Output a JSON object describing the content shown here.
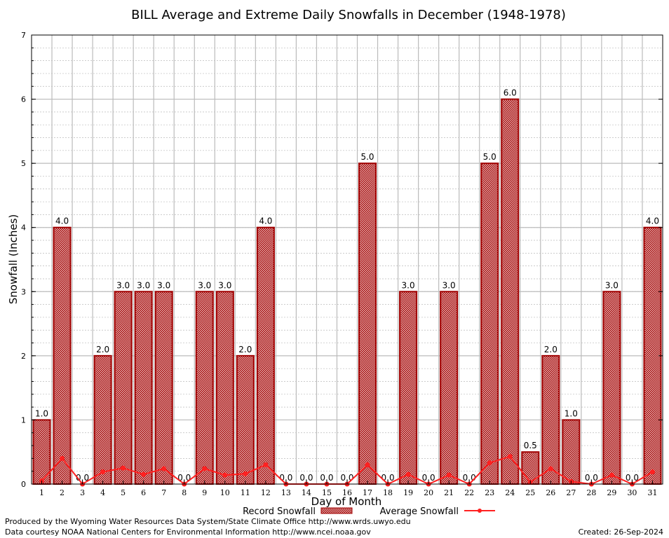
{
  "chart_data": {
    "type": "bar",
    "title": "BILL Average and Extreme Daily Snowfalls in December (1948-1978)",
    "xlabel": "Day of Month",
    "ylabel": "Snowfall (Inches)",
    "ylim": [
      0,
      7
    ],
    "yticks": [
      "0",
      "1",
      "2",
      "3",
      "4",
      "5",
      "6",
      "7"
    ],
    "grid": true,
    "categories": [
      "1",
      "2",
      "3",
      "4",
      "5",
      "6",
      "7",
      "8",
      "9",
      "10",
      "11",
      "12",
      "13",
      "14",
      "15",
      "16",
      "17",
      "18",
      "19",
      "20",
      "21",
      "22",
      "23",
      "24",
      "25",
      "26",
      "27",
      "28",
      "29",
      "30",
      "31"
    ],
    "series": [
      {
        "name": "Record Snowfall",
        "type": "bar",
        "color": "#a00000",
        "values": [
          1.0,
          4.0,
          0.0,
          2.0,
          3.0,
          3.0,
          3.0,
          0.0,
          3.0,
          3.0,
          2.0,
          4.0,
          0.0,
          0.0,
          0.0,
          0.0,
          5.0,
          0.0,
          3.0,
          0.0,
          3.0,
          0.0,
          5.0,
          6.0,
          0.5,
          2.0,
          1.0,
          0.0,
          3.0,
          0.0,
          4.0
        ],
        "labels": [
          "1.0",
          "4.0",
          "0.0",
          "2.0",
          "3.0",
          "3.0",
          "3.0",
          "0.0",
          "3.0",
          "3.0",
          "2.0",
          "4.0",
          "0.0",
          "0.0",
          "0.0",
          "0.0",
          "5.0",
          "0.0",
          "3.0",
          "0.0",
          "3.0",
          "0.0",
          "5.0",
          "6.0",
          "0.5",
          "2.0",
          "1.0",
          "0.0",
          "3.0",
          "0.0",
          "4.0"
        ]
      },
      {
        "name": "Average Snowfall",
        "type": "line",
        "color": "#ff2020",
        "values": [
          0.05,
          0.4,
          0.0,
          0.19,
          0.25,
          0.15,
          0.24,
          0.0,
          0.24,
          0.14,
          0.16,
          0.3,
          0.0,
          0.0,
          0.0,
          0.0,
          0.3,
          0.0,
          0.15,
          0.0,
          0.14,
          0.0,
          0.33,
          0.43,
          0.03,
          0.24,
          0.04,
          0.0,
          0.14,
          0.0,
          0.19
        ]
      }
    ],
    "legend_position": "bottom"
  },
  "footer": {
    "left1": "Produced by the Wyoming Water Resources Data System/State Climate Office http://www.wrds.uwyo.edu",
    "left2": "Data courtesy NOAA National Centers for Environmental Information http://www.ncei.noaa.gov",
    "created": "Created:  26-Sep-2024"
  }
}
